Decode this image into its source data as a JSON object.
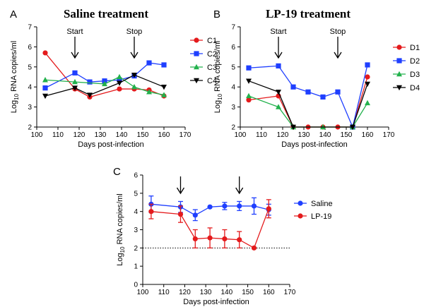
{
  "chart_data": [
    {
      "panel": "A",
      "type": "line",
      "title": "Saline treatment",
      "xlabel": "Days post-infection",
      "ylabel": "Log10 RNA copies/ml",
      "ylabel_main": "Log",
      "ylabel_sub": "10",
      "ylabel_rest": " RNA copies/ml",
      "xlim": [
        100,
        170
      ],
      "ylim": [
        2,
        7
      ],
      "xticks": [
        "100",
        "110",
        "120",
        "130",
        "140",
        "150",
        "160",
        "170"
      ],
      "yticks": [
        "2",
        "3",
        "4",
        "5",
        "6",
        "7"
      ],
      "legend_position": "right",
      "annotations": [
        {
          "text": "Start",
          "x": 118
        },
        {
          "text": "Stop",
          "x": 146
        }
      ],
      "series": [
        {
          "name": "C1",
          "color": "#e41a1c",
          "marker": "circle",
          "x": [
            104,
            118,
            125,
            139,
            146,
            153,
            160
          ],
          "y": [
            5.7,
            3.9,
            3.5,
            3.9,
            3.9,
            3.85,
            3.55
          ]
        },
        {
          "name": "C2",
          "color": "#1f3fff",
          "marker": "square",
          "x": [
            104,
            118,
            125,
            132,
            139,
            146,
            153,
            160
          ],
          "y": [
            3.95,
            4.7,
            4.25,
            4.3,
            4.35,
            4.55,
            5.2,
            5.1
          ]
        },
        {
          "name": "C3",
          "color": "#22b14c",
          "marker": "triangle",
          "x": [
            104,
            118,
            132,
            139,
            146,
            153,
            160
          ],
          "y": [
            4.35,
            4.25,
            4.15,
            4.5,
            4.0,
            3.75,
            3.6
          ]
        },
        {
          "name": "C4",
          "color": "#000000",
          "marker": "triangle-down",
          "x": [
            104,
            118,
            125,
            139,
            146,
            160
          ],
          "y": [
            3.55,
            3.95,
            3.6,
            4.2,
            4.6,
            4.0
          ]
        }
      ]
    },
    {
      "panel": "B",
      "type": "line",
      "title": "LP-19 treatment",
      "xlabel": "Days post-infection",
      "ylabel": "Log10 RNA copies/ml",
      "ylabel_main": "Log",
      "ylabel_sub": "10",
      "ylabel_rest": " RNA copies/ml",
      "xlim": [
        100,
        170
      ],
      "ylim": [
        2,
        7
      ],
      "xticks": [
        "100",
        "110",
        "120",
        "130",
        "140",
        "150",
        "160",
        "170"
      ],
      "yticks": [
        "2",
        "3",
        "4",
        "5",
        "6",
        "7"
      ],
      "legend_position": "right",
      "annotations": [
        {
          "text": "Start",
          "x": 118
        },
        {
          "text": "Stop",
          "x": 146
        }
      ],
      "series": [
        {
          "name": "D1",
          "color": "#e41a1c",
          "marker": "circle",
          "x": [
            104,
            118,
            125,
            132,
            139,
            146,
            153,
            160
          ],
          "y": [
            3.35,
            3.55,
            2.0,
            2.0,
            2.0,
            2.0,
            2.0,
            4.5
          ]
        },
        {
          "name": "D2",
          "color": "#1f3fff",
          "marker": "square",
          "x": [
            104,
            118,
            125,
            132,
            139,
            146,
            153,
            160
          ],
          "y": [
            4.95,
            5.05,
            4.0,
            3.75,
            3.5,
            3.75,
            2.0,
            5.1
          ]
        },
        {
          "name": "D3",
          "color": "#22b14c",
          "marker": "triangle",
          "x": [
            104,
            118,
            125,
            139,
            153,
            160
          ],
          "y": [
            3.55,
            3.0,
            2.0,
            2.0,
            2.0,
            3.2
          ]
        },
        {
          "name": "D4",
          "color": "#000000",
          "marker": "triangle-down",
          "x": [
            104,
            118,
            125,
            153,
            160
          ],
          "y": [
            4.3,
            3.75,
            2.0,
            2.0,
            4.15
          ]
        }
      ]
    },
    {
      "panel": "C",
      "type": "line",
      "title": "",
      "xlabel": "Days post-infection",
      "ylabel": "Log10 RNA copies/ml",
      "ylabel_main": "Log",
      "ylabel_sub": "10",
      "ylabel_rest": " RNA copies/ml",
      "xlim": [
        100,
        170
      ],
      "ylim": [
        0,
        6
      ],
      "xticks": [
        "100",
        "110",
        "120",
        "130",
        "140",
        "150",
        "160",
        "170"
      ],
      "yticks": [
        "0",
        "1",
        "2",
        "3",
        "4",
        "5",
        "6"
      ],
      "reference_line_y": 2,
      "legend_position": "right",
      "annotations": [
        {
          "text": "",
          "x": 118
        },
        {
          "text": "",
          "x": 146
        }
      ],
      "series": [
        {
          "name": "Saline",
          "color": "#1f3fff",
          "marker": "circle",
          "x": [
            104,
            118,
            125,
            132,
            139,
            146,
            153,
            160
          ],
          "y": [
            4.4,
            4.25,
            3.8,
            4.25,
            4.3,
            4.3,
            4.3,
            4.1
          ],
          "err": [
            0.45,
            0.3,
            0.3,
            0.0,
            0.2,
            0.25,
            0.45,
            0.3
          ]
        },
        {
          "name": "LP-19",
          "color": "#e41a1c",
          "marker": "circle",
          "x": [
            104,
            118,
            125,
            132,
            139,
            146,
            153,
            160
          ],
          "y": [
            4.0,
            3.85,
            2.5,
            2.55,
            2.5,
            2.45,
            2.0,
            4.15
          ],
          "err": [
            0.4,
            0.45,
            0.5,
            0.55,
            0.5,
            0.45,
            0.0,
            0.5
          ]
        }
      ]
    }
  ]
}
